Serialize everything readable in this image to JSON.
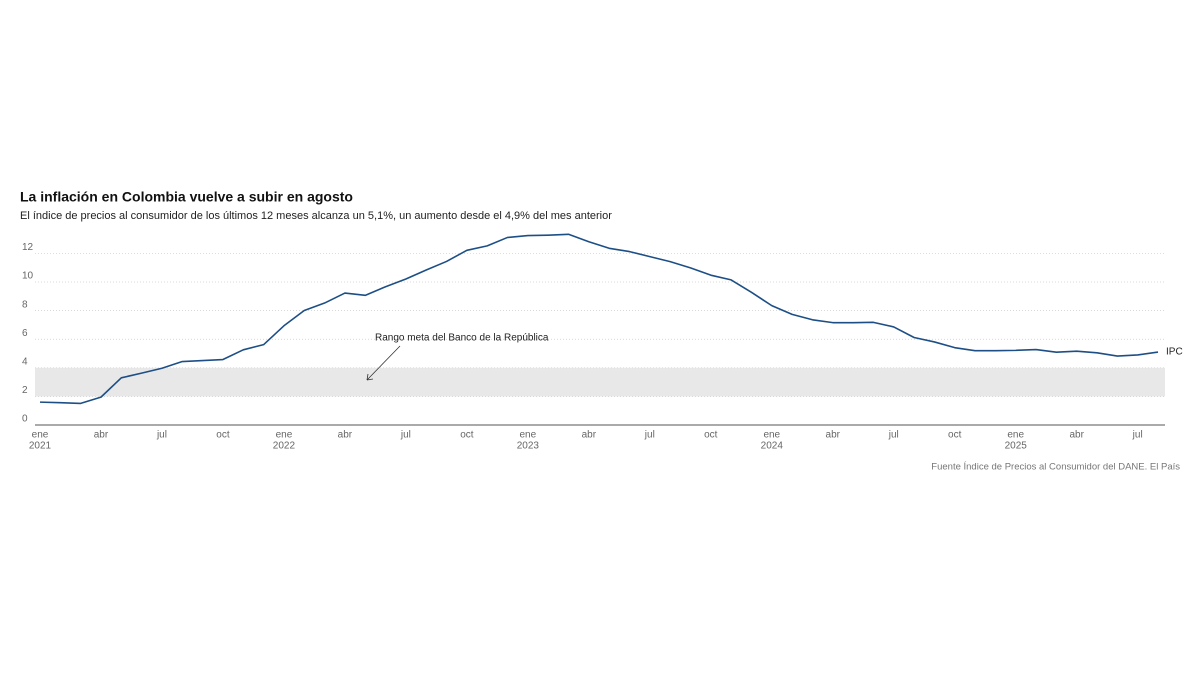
{
  "chart_data": {
    "type": "line",
    "title": "La inflación en Colombia vuelve a subir en agosto",
    "subtitle": "El índice de precios al consumidor de los últimos 12 meses alcanza un 5,1%, un aumento desde el 4,9% del mes anterior",
    "source": "Fuente Índice de Precios al Consumidor del DANE. El País",
    "categories": [
      "ene",
      null,
      null,
      "abr",
      null,
      null,
      "jul",
      null,
      null,
      "oct",
      null,
      null,
      "ene",
      null,
      null,
      "abr",
      null,
      null,
      "jul",
      null,
      null,
      "oct",
      null,
      null,
      "ene",
      null,
      null,
      "abr",
      null,
      null,
      "jul",
      null,
      null,
      "oct",
      null,
      null,
      "ene",
      null,
      null,
      "abr",
      null,
      null,
      "jul",
      null,
      null,
      "oct",
      null,
      null,
      "ene",
      null,
      null,
      "abr",
      null,
      null,
      "jul",
      null
    ],
    "years": [
      "2021",
      "2022",
      "2023",
      "2024",
      "2025"
    ],
    "series": [
      {
        "name": "IPC",
        "color": "#1d4f86",
        "values": [
          1.6,
          1.56,
          1.51,
          1.95,
          3.3,
          3.63,
          3.97,
          4.44,
          4.51,
          4.58,
          5.26,
          5.62,
          6.94,
          8.01,
          8.53,
          9.23,
          9.07,
          9.67,
          10.21,
          10.84,
          11.44,
          12.22,
          12.53,
          13.12,
          13.25,
          13.28,
          13.34,
          12.82,
          12.36,
          12.13,
          11.78,
          11.43,
          10.99,
          10.48,
          10.15,
          9.28,
          8.35,
          7.74,
          7.36,
          7.16,
          7.16,
          7.18,
          6.86,
          6.12,
          5.81,
          5.41,
          5.2,
          5.2,
          5.22,
          5.28,
          5.09,
          5.16,
          5.05,
          4.82,
          4.9,
          5.1
        ]
      }
    ],
    "target_band": {
      "label": "Rango meta del Banco de la República",
      "range": [
        2,
        4
      ],
      "color": "#e8e8e8"
    },
    "ylim": [
      0,
      13.5
    ],
    "yticks": [
      0,
      2,
      4,
      6,
      8,
      10,
      12
    ],
    "grid": true
  }
}
